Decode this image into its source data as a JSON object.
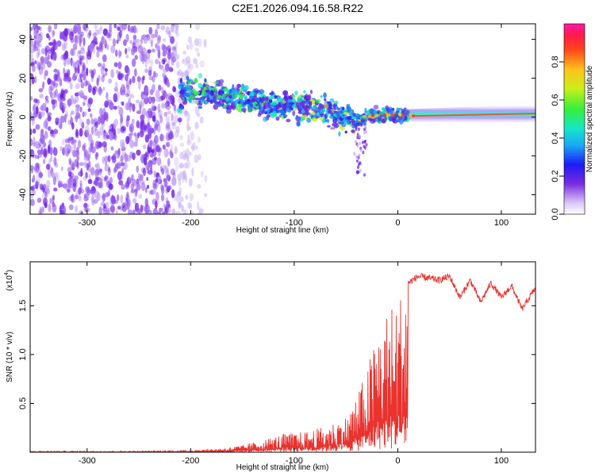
{
  "title": "C2E1.2026.094.16.58.R22",
  "chart_data": [
    {
      "type": "heatmap",
      "name": "spectrogram",
      "xlabel": "Height of straight line (km)",
      "ylabel": "Frequency (Hz)",
      "xlim": [
        -355,
        133
      ],
      "ylim": [
        -50,
        48
      ],
      "xticks": [
        -300,
        -200,
        -100,
        0,
        100
      ],
      "xtick_labels": [
        "-300",
        "-200",
        "-100",
        "0",
        "100"
      ],
      "yticks": [
        -40,
        -20,
        0,
        20,
        40
      ],
      "ytick_labels": [
        "-40",
        "-20",
        "0",
        "20",
        "40"
      ],
      "colorbar": {
        "label": "Normalized spectral amplitude",
        "range": [
          0,
          1
        ],
        "ticks": [
          0.0,
          0.2,
          0.4,
          0.6,
          0.8
        ],
        "tick_labels": [
          "0.0",
          "0.2",
          "0.4",
          "0.6",
          "0.8"
        ]
      },
      "features": {
        "noise_region_x": [
          -355,
          -185
        ],
        "signal_band_start_x": -210,
        "signal_band_center_hz": [
          [
            -210,
            14
          ],
          [
            -170,
            11
          ],
          [
            -130,
            7
          ],
          [
            -100,
            6
          ],
          [
            -70,
            3
          ],
          [
            -40,
            -1
          ],
          [
            -20,
            1
          ],
          [
            0,
            1
          ],
          [
            50,
            0
          ],
          [
            133,
            2
          ]
        ]
      }
    },
    {
      "type": "line",
      "name": "snr",
      "xlabel": "Height of straight line (km)",
      "ylabel": "SNR (10 * v/v)",
      "multiplier_label": "(x10",
      "multiplier_exponent": "4",
      "xlim": [
        -355,
        133
      ],
      "ylim": [
        0,
        1.95
      ],
      "xticks": [
        -300,
        -200,
        -100,
        0,
        100
      ],
      "xtick_labels": [
        "-300",
        "-200",
        "-100",
        "0",
        "100"
      ],
      "yticks": [
        0.5,
        1.0,
        1.5
      ],
      "ytick_labels": [
        "0.5",
        "1.0",
        "1.5"
      ],
      "series": [
        {
          "name": "SNR",
          "color": "#e8332f",
          "x": [
            -355,
            -250,
            -200,
            -170,
            -150,
            -130,
            -110,
            -90,
            -70,
            -50,
            -40,
            -30,
            -20,
            -10,
            0,
            10,
            20,
            30,
            40,
            50,
            60,
            70,
            80,
            90,
            100,
            110,
            120,
            133
          ],
          "y": [
            0.01,
            0.01,
            0.02,
            0.04,
            0.07,
            0.12,
            0.18,
            0.2,
            0.25,
            0.35,
            0.55,
            0.8,
            1.2,
            1.4,
            1.5,
            1.75,
            1.82,
            1.8,
            1.78,
            1.82,
            1.6,
            1.78,
            1.55,
            1.75,
            1.6,
            1.72,
            1.48,
            1.7
          ]
        }
      ]
    }
  ]
}
